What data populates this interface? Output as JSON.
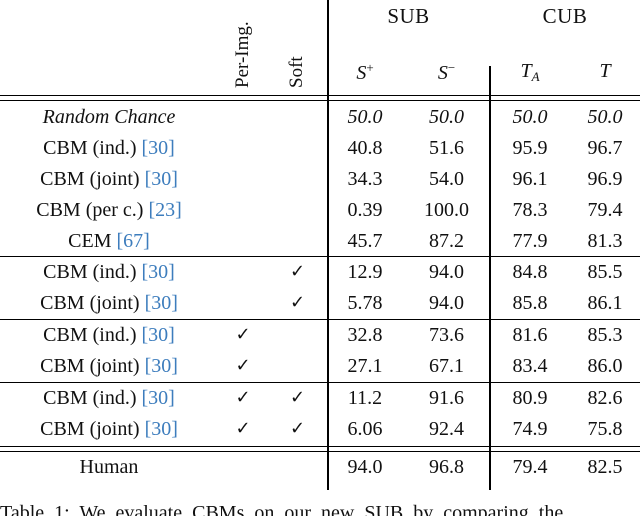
{
  "colors": {
    "citation_blue": "#3d7dbd",
    "text": "#111111",
    "rule": "#000000",
    "background": "#ffffff"
  },
  "header": {
    "group_cols": [
      {
        "label": "SUB"
      },
      {
        "label": "CUB"
      }
    ],
    "rotated_cols": [
      {
        "label": "Per-Img."
      },
      {
        "label": "Soft"
      }
    ],
    "metric_cols": [
      {
        "base": "S",
        "sup": "+",
        "sub": ""
      },
      {
        "base": "S",
        "sup": "−",
        "sub": ""
      },
      {
        "base": "T",
        "sup": "",
        "sub": "A"
      },
      {
        "base": "T",
        "sup": "",
        "sub": ""
      }
    ],
    "check_glyph": "✓"
  },
  "table": {
    "rows": [
      {
        "group": 1,
        "label": "Random Chance",
        "cite": "",
        "italic": true,
        "per_img": false,
        "soft": false,
        "values": [
          "50.0",
          "50.0",
          "50.0",
          "50.0"
        ]
      },
      {
        "group": 1,
        "label": "CBM (ind.)",
        "cite": "[30]",
        "italic": false,
        "per_img": false,
        "soft": false,
        "values": [
          "40.8",
          "51.6",
          "95.9",
          "96.7"
        ]
      },
      {
        "group": 1,
        "label": "CBM (joint)",
        "cite": "[30]",
        "italic": false,
        "per_img": false,
        "soft": false,
        "values": [
          "34.3",
          "54.0",
          "96.1",
          "96.9"
        ]
      },
      {
        "group": 1,
        "label": "CBM (per c.)",
        "cite": "[23]",
        "italic": false,
        "per_img": false,
        "soft": false,
        "values": [
          "0.39",
          "100.0",
          "78.3",
          "79.4"
        ]
      },
      {
        "group": 1,
        "label": "CEM",
        "cite": "[67]",
        "italic": false,
        "per_img": false,
        "soft": false,
        "values": [
          "45.7",
          "87.2",
          "77.9",
          "81.3"
        ]
      },
      {
        "group": 2,
        "label": "CBM (ind.)",
        "cite": "[30]",
        "italic": false,
        "per_img": false,
        "soft": true,
        "values": [
          "12.9",
          "94.0",
          "84.8",
          "85.5"
        ]
      },
      {
        "group": 2,
        "label": "CBM (joint)",
        "cite": "[30]",
        "italic": false,
        "per_img": false,
        "soft": true,
        "values": [
          "5.78",
          "94.0",
          "85.8",
          "86.1"
        ]
      },
      {
        "group": 3,
        "label": "CBM (ind.)",
        "cite": "[30]",
        "italic": false,
        "per_img": true,
        "soft": false,
        "values": [
          "32.8",
          "73.6",
          "81.6",
          "85.3"
        ]
      },
      {
        "group": 3,
        "label": "CBM (joint)",
        "cite": "[30]",
        "italic": false,
        "per_img": true,
        "soft": false,
        "values": [
          "27.1",
          "67.1",
          "83.4",
          "86.0"
        ]
      },
      {
        "group": 4,
        "label": "CBM (ind.)",
        "cite": "[30]",
        "italic": false,
        "per_img": true,
        "soft": true,
        "values": [
          "11.2",
          "91.6",
          "80.9",
          "82.6"
        ]
      },
      {
        "group": 4,
        "label": "CBM (joint)",
        "cite": "[30]",
        "italic": false,
        "per_img": true,
        "soft": true,
        "values": [
          "6.06",
          "92.4",
          "74.9",
          "75.8"
        ]
      },
      {
        "group": 5,
        "label": "Human",
        "cite": "",
        "italic": false,
        "per_img": false,
        "soft": false,
        "values": [
          "94.0",
          "96.8",
          "79.4",
          "82.5"
        ]
      }
    ]
  },
  "caption": {
    "text": "Table 1: We evaluate CBMs on our new SUB by comparing the"
  }
}
